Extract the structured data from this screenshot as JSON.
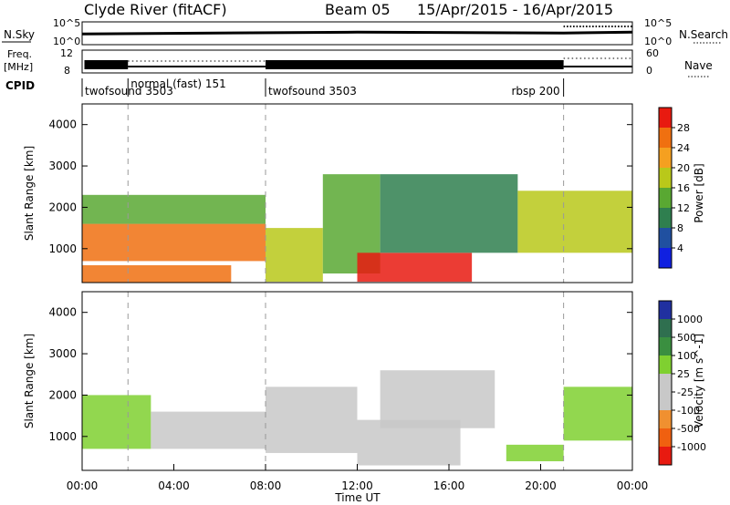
{
  "header": {
    "station": "Clyde River (fitACF)",
    "beam": "Beam 05",
    "dates": "15/Apr/2015 - 16/Apr/2015"
  },
  "noise_panel": {
    "left_label": "N.Sky",
    "left_ticks": [
      "10^5",
      "10^0"
    ],
    "right_ticks": [
      "10^5",
      "10^0"
    ],
    "right_label": "N.Search",
    "nsky_level": 0.55,
    "nsearch_level": 0.8
  },
  "freq_panel": {
    "label_line1": "Freq.",
    "label_line2": "[MHz]",
    "left_ticks": [
      "12",
      "8"
    ],
    "right_ticks": [
      "60",
      "0"
    ],
    "right_label": "Nave"
  },
  "cpid_panel": {
    "label": "CPID",
    "segments": [
      {
        "name": "twofsound 3503",
        "start": 0.0,
        "end": 2.0
      },
      {
        "name": "normal (fast) 151",
        "start": 2.0,
        "end": 8.0
      },
      {
        "name": "twofsound 3503",
        "start": 8.0,
        "end": 21.0
      },
      {
        "name": "rbsp 200",
        "start": 21.0,
        "end": 24.0
      }
    ]
  },
  "power_scale": {
    "label": "Power [dB]",
    "ticks": [
      "4",
      "8",
      "12",
      "16",
      "20",
      "24",
      "28"
    ],
    "colors": [
      "#1020e0",
      "#2050a0",
      "#2f7f4f",
      "#59a832",
      "#b9c81a",
      "#f5a020",
      "#f07010",
      "#e81a10"
    ]
  },
  "velocity_scale": {
    "label": "Velocity [m s^-1]",
    "ticks": [
      "1000",
      "500",
      "100",
      "25",
      "-25",
      "-100",
      "-500",
      "-1000"
    ],
    "colors": [
      "#2030a0",
      "#2f6f4f",
      "#3a8f40",
      "#7fd030",
      "#c8c8c8",
      "#c8c8c8",
      "#f09030",
      "#f06010",
      "#e81a10"
    ]
  },
  "x_axis": {
    "label": "Time UT",
    "ticks": [
      "00:00",
      "04:00",
      "08:00",
      "12:00",
      "16:00",
      "20:00",
      "00:00"
    ]
  },
  "chart_data": [
    {
      "type": "heatmap",
      "name": "power",
      "ylabel": "Slant Range [km]",
      "xlabel": "",
      "xlim": [
        0,
        24
      ],
      "ylim": [
        180,
        4500
      ],
      "yticks": [
        1000,
        2000,
        3000,
        4000
      ],
      "colorbar": {
        "label": "Power [dB]",
        "range": [
          0,
          30
        ]
      },
      "regions": [
        {
          "t": [
            0.0,
            6.5
          ],
          "range": [
            180,
            600
          ],
          "value": 26
        },
        {
          "t": [
            0.0,
            8.0
          ],
          "range": [
            700,
            1600
          ],
          "value": 24
        },
        {
          "t": [
            0.0,
            8.0
          ],
          "range": [
            1600,
            2300
          ],
          "value": 12
        },
        {
          "t": [
            8.0,
            10.5
          ],
          "range": [
            200,
            1500
          ],
          "value": 16
        },
        {
          "t": [
            10.5,
            13.0
          ],
          "range": [
            400,
            2800
          ],
          "value": 14
        },
        {
          "t": [
            12.0,
            17.0
          ],
          "range": [
            200,
            900
          ],
          "value": 28
        },
        {
          "t": [
            13.0,
            19.0
          ],
          "range": [
            900,
            2800
          ],
          "value": 10
        },
        {
          "t": [
            19.0,
            24.0
          ],
          "range": [
            900,
            2400
          ],
          "value": 16
        }
      ]
    },
    {
      "type": "heatmap",
      "name": "velocity",
      "ylabel": "Slant Range [km]",
      "xlabel": "Time UT",
      "xlim": [
        0,
        24
      ],
      "ylim": [
        180,
        4500
      ],
      "yticks": [
        1000,
        2000,
        3000,
        4000
      ],
      "colorbar": {
        "label": "Velocity [m s^-1]",
        "range": [
          -1000,
          1000
        ]
      },
      "regions": [
        {
          "t": [
            0.0,
            3.0
          ],
          "range": [
            700,
            2000
          ],
          "value": 300
        },
        {
          "t": [
            3.0,
            8.0
          ],
          "range": [
            700,
            1600
          ],
          "value": 0
        },
        {
          "t": [
            8.0,
            12.0
          ],
          "range": [
            600,
            2200
          ],
          "value": -300
        },
        {
          "t": [
            12.0,
            16.5
          ],
          "range": [
            300,
            1400
          ],
          "value": -200
        },
        {
          "t": [
            13.0,
            18.0
          ],
          "range": [
            1200,
            2600
          ],
          "value": 0
        },
        {
          "t": [
            18.5,
            21.0
          ],
          "range": [
            400,
            800
          ],
          "value": 150
        },
        {
          "t": [
            21.0,
            24.0
          ],
          "range": [
            900,
            2200
          ],
          "value": 200
        }
      ]
    }
  ]
}
